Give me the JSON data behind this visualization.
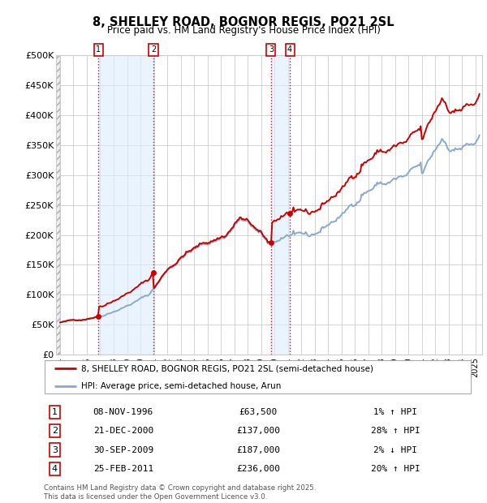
{
  "title": "8, SHELLEY ROAD, BOGNOR REGIS, PO21 2SL",
  "subtitle": "Price paid vs. HM Land Registry's House Price Index (HPI)",
  "xlim_start": 1993.7,
  "xlim_end": 2025.5,
  "ylim": [
    0,
    500000
  ],
  "yticks": [
    0,
    50000,
    100000,
    150000,
    200000,
    250000,
    300000,
    350000,
    400000,
    450000,
    500000
  ],
  "ytick_labels": [
    "£0",
    "£50K",
    "£100K",
    "£150K",
    "£200K",
    "£250K",
    "£300K",
    "£350K",
    "£400K",
    "£450K",
    "£500K"
  ],
  "sale_dates": [
    1996.86,
    2000.97,
    2009.75,
    2011.15
  ],
  "sale_prices": [
    63500,
    137000,
    187000,
    236000
  ],
  "sale_labels": [
    "1",
    "2",
    "3",
    "4"
  ],
  "sale_info": [
    {
      "num": "1",
      "date": "08-NOV-1996",
      "price": "£63,500",
      "hpi": "1% ↑ HPI"
    },
    {
      "num": "2",
      "date": "21-DEC-2000",
      "price": "£137,000",
      "hpi": "28% ↑ HPI"
    },
    {
      "num": "3",
      "date": "30-SEP-2009",
      "price": "£187,000",
      "hpi": "2% ↓ HPI"
    },
    {
      "num": "4",
      "date": "25-FEB-2011",
      "price": "£236,000",
      "hpi": "20% ↑ HPI"
    }
  ],
  "line_color": "#cc0000",
  "hpi_color": "#88aacc",
  "grid_color": "#cccccc",
  "vline_color": "#cc0000",
  "bg_highlight_color": "#ddeeff",
  "footer": "Contains HM Land Registry data © Crown copyright and database right 2025.\nThis data is licensed under the Open Government Licence v3.0.",
  "legend_label_red": "8, SHELLEY ROAD, BOGNOR REGIS, PO21 2SL (semi-detached house)",
  "legend_label_blue": "HPI: Average price, semi-detached house, Arun"
}
